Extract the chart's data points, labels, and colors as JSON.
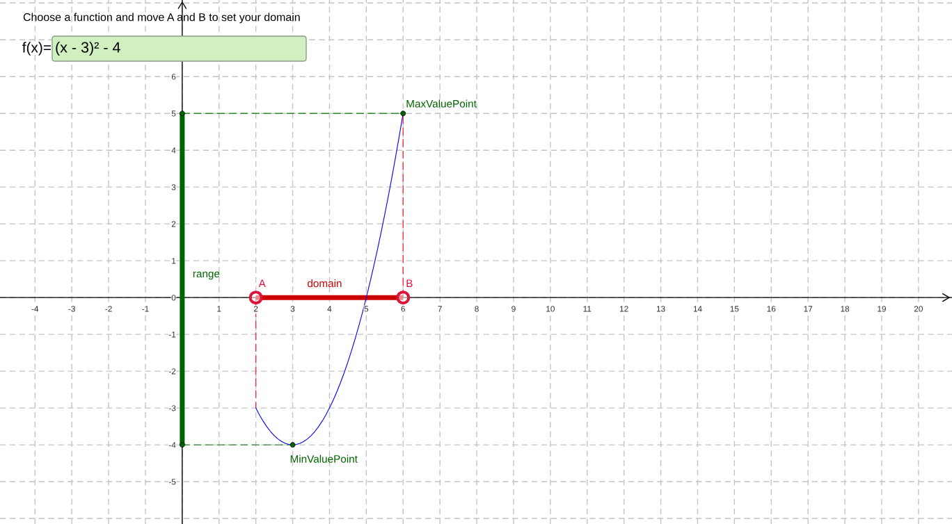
{
  "chart_data": {
    "type": "line",
    "title": "Choose a function and move A and B to set your domain",
    "annotations": [
      "f(x)=",
      "(x - 3)² - 4"
    ],
    "xlim": [
      -4.95,
      20.91
    ],
    "ylim": [
      -6.15,
      8.08
    ],
    "xticks": [
      -4,
      -3,
      -2,
      -1,
      {
        "value": 0,
        "label": null
      },
      1,
      2,
      3,
      4,
      5,
      6,
      7,
      8,
      9,
      10,
      11,
      12,
      13,
      14,
      15,
      16,
      17,
      18,
      19,
      20
    ],
    "yticks": [
      {
        "value": -6,
        "label": null
      },
      -5,
      -4,
      -3,
      -2,
      -1,
      0,
      1,
      2,
      3,
      4,
      5,
      6,
      {
        "value": 7,
        "label": null
      },
      {
        "value": 8,
        "label": null
      }
    ],
    "grid": true,
    "legend": false,
    "series": [
      {
        "color": "#0000ff",
        "line_style": "solid",
        "x": [
          2.0,
          2.1,
          2.2,
          2.3,
          2.4,
          2.5,
          2.6,
          2.7,
          2.8,
          2.9,
          3.0,
          3.1,
          3.2,
          3.3,
          3.4,
          3.5,
          3.6,
          3.7,
          3.8,
          3.9,
          4.0,
          4.1,
          4.2,
          4.3,
          4.4,
          4.5,
          4.6,
          4.7,
          4.8,
          4.9,
          5.0,
          5.1,
          5.2,
          5.3,
          5.4,
          5.5,
          5.6,
          5.7,
          5.8,
          5.9,
          6.0
        ],
        "values": [
          -3,
          -3.19,
          -3.36,
          -3.51,
          -3.64,
          -3.75,
          -3.84,
          -3.91,
          -3.96,
          -3.99,
          -4,
          -3.99,
          -3.96,
          -3.91,
          -3.84,
          -3.75,
          -3.64,
          -3.51,
          -3.36,
          -3.19,
          -3,
          -2.79,
          -2.56,
          -2.31,
          -2.04,
          -1.75,
          -1.44,
          -1.11,
          -0.76,
          -0.39,
          0,
          0.41,
          0.84,
          1.29,
          1.76,
          2.25,
          2.76,
          3.29,
          3.84,
          4.41,
          5
        ]
      },
      {
        "line_style": "dashed",
        "color": "#338833",
        "x": [
          0,
          6
        ],
        "values": [
          5,
          5
        ]
      },
      {
        "line_style": "dashed",
        "color": "#338833",
        "x": [
          0,
          3
        ],
        "values": [
          -4,
          -4
        ]
      },
      {
        "line_style": "dashed",
        "color": "#ee3344",
        "x": [
          6,
          6
        ],
        "values": [
          0,
          5
        ]
      },
      {
        "line_style": "dashed",
        "color": "#ee3344",
        "x": [
          2,
          2
        ],
        "values": [
          0,
          -3
        ]
      },
      {
        "name": "domain",
        "line_style": "solid",
        "color": "#cc0000",
        "x": [
          2,
          6
        ],
        "values": [
          0,
          0
        ]
      },
      {
        "name": "range",
        "line_style": "solid",
        "color": "#006400",
        "x": [
          0,
          0
        ],
        "values": [
          -4,
          5
        ]
      },
      {
        "type": "scatter",
        "marker": "circle",
        "color": "#006400",
        "x": [
          0,
          0
        ],
        "values": [
          -4,
          5
        ]
      },
      {
        "type": "scatter",
        "marker": "circle",
        "name": "MaxValuePoint",
        "color": "#006400",
        "x": [
          6
        ],
        "values": [
          5
        ]
      },
      {
        "type": "scatter",
        "marker": "circle",
        "name": "MinValuePoint",
        "color": "#006400",
        "x": [
          3
        ],
        "values": [
          -4
        ]
      },
      {
        "type": "bubble",
        "marker": "circle",
        "name": "A",
        "color": "#dc143c",
        "x": [
          2
        ],
        "values": [
          0
        ],
        "sizes": [
          1
        ]
      },
      {
        "type": "bubble",
        "marker": "circle",
        "name": "B",
        "color": "#dc143c",
        "x": [
          6
        ],
        "values": [
          0
        ],
        "sizes": [
          1
        ]
      }
    ]
  }
}
